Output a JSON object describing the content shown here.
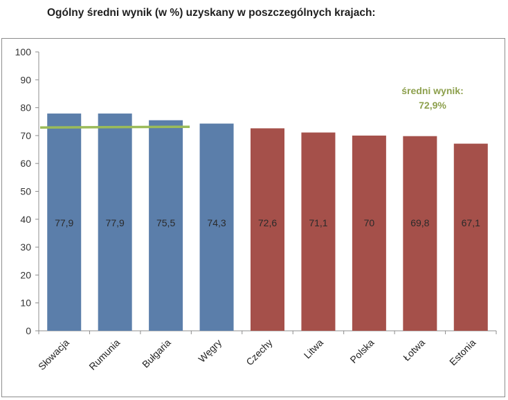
{
  "title": "Ogólny średni wynik (w %) uzyskany w poszczególnych krajach:",
  "average": {
    "label": "średni wynik:",
    "value_text": "72,9%",
    "value": 72.9,
    "color": "#9bbb59"
  },
  "chart_data": {
    "type": "bar",
    "title": "Ogólny średni wynik (w %) uzyskany w poszczególnych krajach:",
    "xlabel": "",
    "ylabel": "",
    "ylim": [
      0,
      100
    ],
    "yticks": [
      0,
      10,
      20,
      30,
      40,
      50,
      60,
      70,
      80,
      90,
      100
    ],
    "grid": false,
    "legend": "none",
    "categories": [
      "Słowacja",
      "Rumunia",
      "Bułgaria",
      "Węgry",
      "Czechy",
      "Litwa",
      "Polska",
      "Łotwa",
      "Estonia"
    ],
    "values": [
      77.9,
      77.9,
      75.5,
      74.3,
      72.6,
      71.1,
      70,
      69.8,
      67.1
    ],
    "value_labels": [
      "77,9",
      "77,9",
      "75,5",
      "74,3",
      "72,6",
      "71,1",
      "70",
      "69,8",
      "67,1"
    ],
    "colors": [
      "#5b7eaa",
      "#5b7eaa",
      "#5b7eaa",
      "#5b7eaa",
      "#a5504a",
      "#a5504a",
      "#a5504a",
      "#a5504a",
      "#a5504a"
    ]
  }
}
